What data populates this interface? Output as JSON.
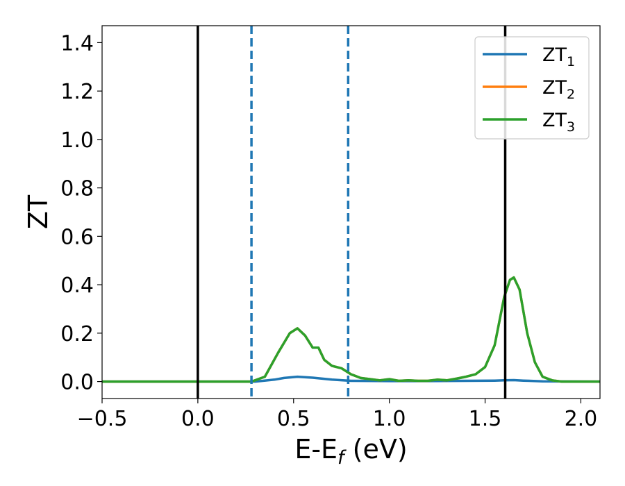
{
  "chart_data": {
    "type": "line",
    "xlabel": "E-E",
    "xlabel_sub": "f",
    "xlabel_unit": " (eV)",
    "ylabel": "ZT",
    "xlim": [
      -0.5,
      2.1
    ],
    "ylim": [
      -0.07,
      1.47
    ],
    "xticks": [
      -0.5,
      0.0,
      0.5,
      1.0,
      1.5,
      2.0
    ],
    "xtick_labels": [
      "−0.5",
      "0.0",
      "0.5",
      "1.0",
      "1.5",
      "2.0"
    ],
    "yticks": [
      0.0,
      0.2,
      0.4,
      0.6,
      0.8,
      1.0,
      1.2,
      1.4
    ],
    "ytick_labels": [
      "0.0",
      "0.2",
      "0.4",
      "0.6",
      "0.8",
      "1.0",
      "1.2",
      "1.4"
    ],
    "grid": false,
    "legend_position": "top-right",
    "vlines": [
      {
        "x": 0.0,
        "style": "solid",
        "color": "#000000"
      },
      {
        "x": 0.28,
        "style": "dashed",
        "color": "#1f77b4"
      },
      {
        "x": 0.785,
        "style": "dashed",
        "color": "#1f77b4"
      },
      {
        "x": 1.605,
        "style": "solid",
        "color": "#000000"
      }
    ],
    "series": [
      {
        "name": "ZT",
        "name_sub": "1",
        "color": "#1f77b4",
        "x": [
          -0.5,
          0.3,
          0.4,
          0.45,
          0.52,
          0.6,
          0.7,
          0.8,
          1.0,
          1.2,
          1.4,
          1.55,
          1.6,
          1.65,
          1.7,
          1.8,
          2.1
        ],
        "y": [
          0.0,
          0.0,
          0.008,
          0.015,
          0.02,
          0.016,
          0.008,
          0.003,
          0.002,
          0.002,
          0.003,
          0.004,
          0.005,
          0.006,
          0.004,
          0.001,
          0.0
        ]
      },
      {
        "name": "ZT",
        "name_sub": "2",
        "color": "#ff7f0e",
        "x": [
          -0.5,
          0.28,
          0.35,
          0.42,
          0.48,
          0.52,
          0.56,
          0.6,
          0.63,
          0.66,
          0.7,
          0.75,
          0.8,
          0.85,
          0.9,
          0.95,
          1.0,
          1.05,
          1.1,
          1.15,
          1.2,
          1.25,
          1.3,
          1.35,
          1.4,
          1.45,
          1.5,
          1.55,
          1.6,
          1.63,
          1.65,
          1.68,
          1.72,
          1.76,
          1.8,
          1.85,
          1.9,
          2.1
        ],
        "y": [
          0.0,
          0.0,
          0.02,
          0.12,
          0.2,
          0.22,
          0.19,
          0.14,
          0.14,
          0.09,
          0.065,
          0.055,
          0.03,
          0.015,
          0.01,
          0.005,
          0.01,
          0.003,
          0.005,
          0.003,
          0.003,
          0.008,
          0.005,
          0.012,
          0.02,
          0.03,
          0.06,
          0.15,
          0.35,
          0.42,
          0.43,
          0.38,
          0.2,
          0.08,
          0.02,
          0.005,
          0.0,
          0.0
        ]
      },
      {
        "name": "ZT",
        "name_sub": "3",
        "color": "#2ca02c",
        "x": [
          -0.5,
          0.28,
          0.35,
          0.42,
          0.48,
          0.52,
          0.56,
          0.6,
          0.63,
          0.66,
          0.7,
          0.75,
          0.8,
          0.85,
          0.9,
          0.95,
          1.0,
          1.05,
          1.1,
          1.15,
          1.2,
          1.25,
          1.3,
          1.35,
          1.4,
          1.45,
          1.5,
          1.55,
          1.6,
          1.63,
          1.65,
          1.68,
          1.72,
          1.76,
          1.8,
          1.85,
          1.9,
          2.1
        ],
        "y": [
          0.0,
          0.0,
          0.02,
          0.12,
          0.2,
          0.22,
          0.19,
          0.14,
          0.14,
          0.09,
          0.065,
          0.055,
          0.03,
          0.015,
          0.01,
          0.005,
          0.01,
          0.003,
          0.005,
          0.003,
          0.003,
          0.008,
          0.005,
          0.012,
          0.02,
          0.03,
          0.06,
          0.15,
          0.35,
          0.42,
          0.43,
          0.38,
          0.2,
          0.08,
          0.02,
          0.005,
          0.0,
          0.0
        ]
      }
    ]
  }
}
